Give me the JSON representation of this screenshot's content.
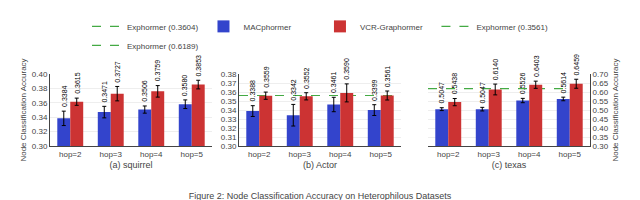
{
  "title": "Figure 2: Node Classification Accuracy on Heterophilous Datasets",
  "legend": "top",
  "chart_data": [
    {
      "type": "bar",
      "xlabel": "(a) squirrel",
      "ylabel": "Node Classification Accuracy",
      "categories": [
        "hop=2",
        "hop=3",
        "hop=4",
        "hop=5"
      ],
      "ylim": [
        0.3,
        0.4
      ],
      "yticks": [
        {
          "value": 0.3,
          "label": "0.30"
        },
        0.32,
        0.34,
        0.36,
        0.38,
        {
          "value": 0.4,
          "label": "0.40"
        }
      ],
      "grid": true,
      "data_labels": true,
      "reference_line": {
        "name": "Exphormer (0.3604)",
        "value": 0.3604,
        "color": "#44aa44",
        "line_style": "dashed"
      },
      "series": [
        {
          "name": "MACphormer",
          "color": "#3344cc",
          "values": [
            0.3384,
            0.3471,
            0.3506,
            0.358
          ],
          "errors": [
            0.01,
            0.008,
            0.005,
            0.006
          ],
          "value_labels": [
            "0.3384",
            "0.3471",
            "0.3506",
            "0.3580"
          ]
        },
        {
          "name": "VCR-Graphormer",
          "color": "#cc3333",
          "values": [
            0.3615,
            0.3727,
            0.3759,
            0.3853
          ],
          "errors": [
            0.005,
            0.01,
            0.008,
            0.006
          ],
          "value_labels": [
            "0.3615",
            "0.3727",
            "0.3759",
            "0.3853"
          ]
        }
      ]
    },
    {
      "type": "bar",
      "xlabel": "(b) Actor",
      "categories": [
        "hop=2",
        "hop=3",
        "hop=4",
        "hop=5"
      ],
      "ylim": [
        0.3,
        0.38
      ],
      "yticks": [
        {
          "value": 0.3,
          "label": "0.30"
        },
        0.31,
        0.32,
        0.33,
        0.34,
        0.35,
        0.36,
        0.37,
        0.38
      ],
      "grid": true,
      "data_labels": true,
      "reference_line": {
        "name": "Exphormer (0.3561)",
        "value": 0.3561,
        "color": "#44aa44",
        "line_style": "dashed"
      },
      "series": [
        {
          "name": "MACphormer",
          "color": "#3344cc",
          "values": [
            0.3388,
            0.3342,
            0.3461,
            0.3399
          ],
          "errors": [
            0.006,
            0.012,
            0.008,
            0.006
          ],
          "value_labels": [
            "0.3388",
            "0.3342",
            "0.3461",
            "0.3399"
          ]
        },
        {
          "name": "VCR-Graphormer",
          "color": "#cc3333",
          "values": [
            0.3559,
            0.3552,
            0.359,
            0.3561
          ],
          "errors": [
            0.004,
            0.004,
            0.01,
            0.005
          ],
          "value_labels": [
            "0.3559",
            "0.3552",
            "0.3590",
            "0.3561"
          ]
        }
      ]
    },
    {
      "type": "bar",
      "xlabel": "(c) texas",
      "ylabel": "Node Classification Accuracy",
      "categories": [
        "hop=2",
        "hop=3",
        "hop=4",
        "hop=5"
      ],
      "ylim": [
        0.3,
        0.7
      ],
      "yticks": [
        {
          "value": 0.3,
          "label": "0.30"
        },
        0.35,
        {
          "value": 0.4,
          "label": "0.40"
        },
        0.45,
        {
          "value": 0.5,
          "label": "0.50"
        },
        0.55,
        {
          "value": 0.6,
          "label": "0.60"
        },
        0.65,
        {
          "value": 0.7,
          "label": "0.70"
        }
      ],
      "grid": true,
      "data_labels": true,
      "reference_line": {
        "name": "Exphormer (0.6189)",
        "value": 0.6189,
        "color": "#44aa44",
        "line_style": "dashed"
      },
      "series": [
        {
          "name": "MACphormer",
          "color": "#3344cc",
          "values": [
            0.5047,
            0.5047,
            0.5526,
            0.5614
          ],
          "errors": [
            0.008,
            0.01,
            0.012,
            0.01
          ],
          "value_labels": [
            "0.5047",
            "0.5047",
            "0.5526",
            "0.5614"
          ]
        },
        {
          "name": "VCR-Graphormer",
          "color": "#cc3333",
          "values": [
            0.5438,
            0.614,
            0.6403,
            0.6459
          ],
          "errors": [
            0.02,
            0.03,
            0.02,
            0.025
          ],
          "value_labels": [
            "0.5438",
            "0.6140",
            "0.6403",
            "0.6459"
          ]
        }
      ]
    }
  ]
}
